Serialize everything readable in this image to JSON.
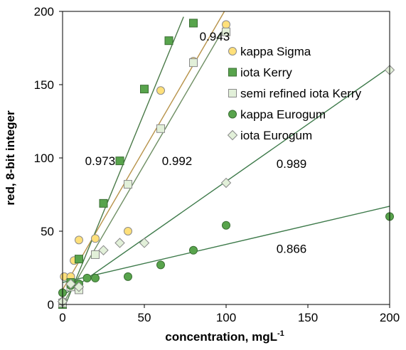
{
  "chart_data": {
    "type": "scatter",
    "title": "",
    "xlabel": "concentration, mgL",
    "xlabel_sup": "-1",
    "ylabel": "red, 8-bit integer",
    "xlim": [
      0,
      200
    ],
    "ylim": [
      0,
      200
    ],
    "x_ticks": [
      "0",
      "50",
      "100",
      "150",
      "200"
    ],
    "y_ticks": [
      "0",
      "50",
      "100",
      "150",
      "200"
    ],
    "grid": false,
    "legend_position": "top-right",
    "series": [
      {
        "name": "kappa Sigma",
        "marker": "circle",
        "fill": "#ffe07a",
        "stroke": "#8a8a8a",
        "trend_color": "#b8934a",
        "points": [
          [
            0,
            2
          ],
          [
            1,
            19
          ],
          [
            5,
            19
          ],
          [
            7,
            30
          ],
          [
            10,
            44
          ],
          [
            20,
            45
          ],
          [
            40,
            50
          ],
          [
            60,
            146
          ],
          [
            80,
            166
          ],
          [
            100,
            191
          ]
        ],
        "trendline": {
          "slope": 1.92,
          "intercept": 10,
          "x_range": [
            0,
            100
          ]
        }
      },
      {
        "name": "iota Kerry",
        "marker": "square",
        "fill": "#58a44c",
        "stroke": "#3a6e33",
        "trend_color": "#4a7a48",
        "points": [
          [
            0,
            0
          ],
          [
            5,
            15
          ],
          [
            10,
            31
          ],
          [
            25,
            69
          ],
          [
            35,
            98
          ],
          [
            50,
            147
          ],
          [
            65,
            180
          ],
          [
            80,
            192
          ]
        ],
        "trendline": {
          "slope": 2.72,
          "intercept": -5,
          "x_range": [
            0,
            74
          ]
        }
      },
      {
        "name": "semi refined iota Kerry",
        "marker": "square",
        "fill": "#e2f0d9",
        "stroke": "#8a8a8a",
        "trend_color": "#6f8f64",
        "points": [
          [
            0,
            1
          ],
          [
            5,
            12
          ],
          [
            10,
            10
          ],
          [
            20,
            34
          ],
          [
            40,
            82
          ],
          [
            60,
            120
          ],
          [
            80,
            165
          ],
          [
            100,
            186
          ]
        ],
        "trendline": {
          "slope": 1.91,
          "intercept": 0,
          "x_range": [
            0,
            100
          ]
        }
      },
      {
        "name": "kappa Eurogum",
        "marker": "circle",
        "fill": "#58a44c",
        "stroke": "#3a6e33",
        "trend_color": "#3d7a4a",
        "points": [
          [
            0,
            8
          ],
          [
            5,
            13
          ],
          [
            10,
            14
          ],
          [
            15,
            18
          ],
          [
            20,
            18
          ],
          [
            40,
            19
          ],
          [
            60,
            27
          ],
          [
            80,
            37
          ],
          [
            100,
            54
          ],
          [
            200,
            60
          ]
        ],
        "trendline": {
          "slope": 0.26,
          "intercept": 15,
          "x_range": [
            0,
            200
          ]
        }
      },
      {
        "name": "iota Eurogum",
        "marker": "diamond",
        "fill": "#e2f0d9",
        "stroke": "#8a8a8a",
        "trend_color": "#3d7a4a",
        "points": [
          [
            0,
            2
          ],
          [
            5,
            14
          ],
          [
            10,
            12
          ],
          [
            25,
            37
          ],
          [
            35,
            42
          ],
          [
            50,
            42
          ],
          [
            100,
            83
          ],
          [
            200,
            160
          ]
        ],
        "trendline": {
          "slope": 0.78,
          "intercept": 6,
          "x_range": [
            0,
            200
          ]
        }
      }
    ],
    "annotations": [
      {
        "text": "0.943",
        "x": 93,
        "y": 183
      },
      {
        "text": "0.973",
        "x": 23,
        "y": 98
      },
      {
        "text": "0.992",
        "x": 70,
        "y": 98
      },
      {
        "text": "0.989",
        "x": 140,
        "y": 96
      },
      {
        "text": "0.866",
        "x": 140,
        "y": 38
      }
    ]
  }
}
